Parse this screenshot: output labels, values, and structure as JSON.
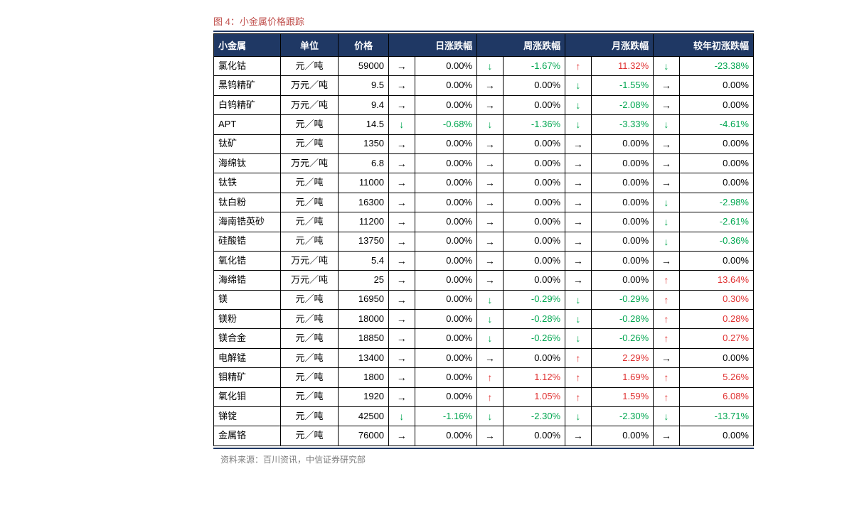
{
  "figure_title": "图 4：小金属价格跟踪",
  "source_text": "资料来源：百川资讯，中信证券研究部",
  "colors": {
    "header_bg": "#1f3864",
    "header_fg": "#ffffff",
    "rule": "#1f3864",
    "title": "#c0504d",
    "up": "#e03030",
    "down": "#00a650",
    "flat": "#000000",
    "border": "#000000",
    "src": "#7f7f7f"
  },
  "arrows": {
    "up": "↑",
    "down": "↓",
    "flat": "→"
  },
  "headers": {
    "name": "小金属",
    "unit": "单位",
    "price": "价格",
    "day": "日涨跌幅",
    "week": "周涨跌幅",
    "month": "月涨跌幅",
    "ytd": "较年初涨跌幅"
  },
  "rows": [
    {
      "name": "氯化钴",
      "unit": "元／吨",
      "price": "59000",
      "day": {
        "dir": "flat",
        "val": "0.00%"
      },
      "week": {
        "dir": "down",
        "val": "-1.67%"
      },
      "month": {
        "dir": "up",
        "val": "11.32%"
      },
      "ytd": {
        "dir": "down",
        "val": "-23.38%"
      }
    },
    {
      "name": "黑钨精矿",
      "unit": "万元／吨",
      "price": "9.5",
      "day": {
        "dir": "flat",
        "val": "0.00%"
      },
      "week": {
        "dir": "flat",
        "val": "0.00%"
      },
      "month": {
        "dir": "down",
        "val": "-1.55%"
      },
      "ytd": {
        "dir": "flat",
        "val": "0.00%"
      }
    },
    {
      "name": "白钨精矿",
      "unit": "万元／吨",
      "price": "9.4",
      "day": {
        "dir": "flat",
        "val": "0.00%"
      },
      "week": {
        "dir": "flat",
        "val": "0.00%"
      },
      "month": {
        "dir": "down",
        "val": "-2.08%"
      },
      "ytd": {
        "dir": "flat",
        "val": "0.00%"
      }
    },
    {
      "name": "APT",
      "unit": "元／吨",
      "price": "14.5",
      "day": {
        "dir": "down",
        "val": "-0.68%"
      },
      "week": {
        "dir": "down",
        "val": "-1.36%"
      },
      "month": {
        "dir": "down",
        "val": "-3.33%"
      },
      "ytd": {
        "dir": "down",
        "val": "-4.61%"
      }
    },
    {
      "name": "钛矿",
      "unit": "元／吨",
      "price": "1350",
      "day": {
        "dir": "flat",
        "val": "0.00%"
      },
      "week": {
        "dir": "flat",
        "val": "0.00%"
      },
      "month": {
        "dir": "flat",
        "val": "0.00%"
      },
      "ytd": {
        "dir": "flat",
        "val": "0.00%"
      }
    },
    {
      "name": "海绵钛",
      "unit": "万元／吨",
      "price": "6.8",
      "day": {
        "dir": "flat",
        "val": "0.00%"
      },
      "week": {
        "dir": "flat",
        "val": "0.00%"
      },
      "month": {
        "dir": "flat",
        "val": "0.00%"
      },
      "ytd": {
        "dir": "flat",
        "val": "0.00%"
      }
    },
    {
      "name": "钛铁",
      "unit": "元／吨",
      "price": "11000",
      "day": {
        "dir": "flat",
        "val": "0.00%"
      },
      "week": {
        "dir": "flat",
        "val": "0.00%"
      },
      "month": {
        "dir": "flat",
        "val": "0.00%"
      },
      "ytd": {
        "dir": "flat",
        "val": "0.00%"
      }
    },
    {
      "name": "钛白粉",
      "unit": "元／吨",
      "price": "16300",
      "day": {
        "dir": "flat",
        "val": "0.00%"
      },
      "week": {
        "dir": "flat",
        "val": "0.00%"
      },
      "month": {
        "dir": "flat",
        "val": "0.00%"
      },
      "ytd": {
        "dir": "down",
        "val": "-2.98%"
      }
    },
    {
      "name": "海南锆英砂",
      "unit": "元／吨",
      "price": "11200",
      "day": {
        "dir": "flat",
        "val": "0.00%"
      },
      "week": {
        "dir": "flat",
        "val": "0.00%"
      },
      "month": {
        "dir": "flat",
        "val": "0.00%"
      },
      "ytd": {
        "dir": "down",
        "val": "-2.61%"
      }
    },
    {
      "name": "硅酸锆",
      "unit": "元／吨",
      "price": "13750",
      "day": {
        "dir": "flat",
        "val": "0.00%"
      },
      "week": {
        "dir": "flat",
        "val": "0.00%"
      },
      "month": {
        "dir": "flat",
        "val": "0.00%"
      },
      "ytd": {
        "dir": "down",
        "val": "-0.36%"
      }
    },
    {
      "name": "氧化锆",
      "unit": "万元／吨",
      "price": "5.4",
      "day": {
        "dir": "flat",
        "val": "0.00%"
      },
      "week": {
        "dir": "flat",
        "val": "0.00%"
      },
      "month": {
        "dir": "flat",
        "val": "0.00%"
      },
      "ytd": {
        "dir": "flat",
        "val": "0.00%"
      }
    },
    {
      "name": "海绵锆",
      "unit": "万元／吨",
      "price": "25",
      "day": {
        "dir": "flat",
        "val": "0.00%"
      },
      "week": {
        "dir": "flat",
        "val": "0.00%"
      },
      "month": {
        "dir": "flat",
        "val": "0.00%"
      },
      "ytd": {
        "dir": "up",
        "val": "13.64%"
      }
    },
    {
      "name": "镁",
      "unit": "元／吨",
      "price": "16950",
      "day": {
        "dir": "flat",
        "val": "0.00%"
      },
      "week": {
        "dir": "down",
        "val": "-0.29%"
      },
      "month": {
        "dir": "down",
        "val": "-0.29%"
      },
      "ytd": {
        "dir": "up",
        "val": "0.30%"
      }
    },
    {
      "name": "镁粉",
      "unit": "元／吨",
      "price": "18000",
      "day": {
        "dir": "flat",
        "val": "0.00%"
      },
      "week": {
        "dir": "down",
        "val": "-0.28%"
      },
      "month": {
        "dir": "down",
        "val": "-0.28%"
      },
      "ytd": {
        "dir": "up",
        "val": "0.28%"
      }
    },
    {
      "name": "镁合金",
      "unit": "元／吨",
      "price": "18850",
      "day": {
        "dir": "flat",
        "val": "0.00%"
      },
      "week": {
        "dir": "down",
        "val": "-0.26%"
      },
      "month": {
        "dir": "down",
        "val": "-0.26%"
      },
      "ytd": {
        "dir": "up",
        "val": "0.27%"
      }
    },
    {
      "name": "电解锰",
      "unit": "元／吨",
      "price": "13400",
      "day": {
        "dir": "flat",
        "val": "0.00%"
      },
      "week": {
        "dir": "flat",
        "val": "0.00%"
      },
      "month": {
        "dir": "up",
        "val": "2.29%"
      },
      "ytd": {
        "dir": "flat",
        "val": "0.00%"
      }
    },
    {
      "name": "钼精矿",
      "unit": "元／吨",
      "price": "1800",
      "day": {
        "dir": "flat",
        "val": "0.00%"
      },
      "week": {
        "dir": "up",
        "val": "1.12%"
      },
      "month": {
        "dir": "up",
        "val": "1.69%"
      },
      "ytd": {
        "dir": "up",
        "val": "5.26%"
      }
    },
    {
      "name": "氧化钼",
      "unit": "元／吨",
      "price": "1920",
      "day": {
        "dir": "flat",
        "val": "0.00%"
      },
      "week": {
        "dir": "up",
        "val": "1.05%"
      },
      "month": {
        "dir": "up",
        "val": "1.59%"
      },
      "ytd": {
        "dir": "up",
        "val": "6.08%"
      }
    },
    {
      "name": "锑锭",
      "unit": "元／吨",
      "price": "42500",
      "day": {
        "dir": "down",
        "val": "-1.16%"
      },
      "week": {
        "dir": "down",
        "val": "-2.30%"
      },
      "month": {
        "dir": "down",
        "val": "-2.30%"
      },
      "ytd": {
        "dir": "down",
        "val": "-13.71%"
      }
    },
    {
      "name": "金属铬",
      "unit": "元／吨",
      "price": "76000",
      "day": {
        "dir": "flat",
        "val": "0.00%"
      },
      "week": {
        "dir": "flat",
        "val": "0.00%"
      },
      "month": {
        "dir": "flat",
        "val": "0.00%"
      },
      "ytd": {
        "dir": "flat",
        "val": "0.00%"
      }
    }
  ]
}
